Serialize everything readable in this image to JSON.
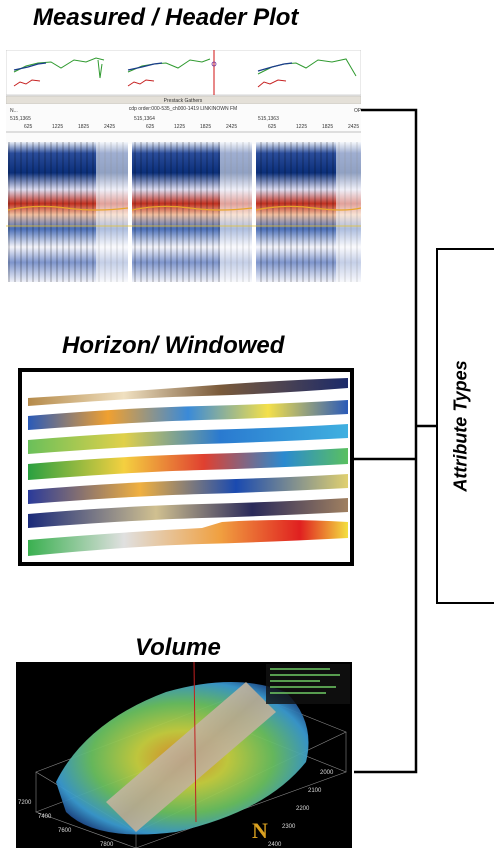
{
  "titles": {
    "measured": "Measured  / Header Plot",
    "horizon": "Horizon/ Windowed",
    "volume": "Volume"
  },
  "attribute_types_label": "Attribute Types",
  "measured_panel": {
    "gathers_header": "Prestack Gathers",
    "axis_caption": "cdp order:000-535_ch000-1419 LINKINOWN FM",
    "gather_labels": [
      "515,1365",
      "515,1364",
      "515,1363"
    ],
    "tick_labels": [
      "625",
      "1225",
      "1825",
      "2425"
    ],
    "corner_left": "N...",
    "corner_right": "OP"
  },
  "volume_panel": {
    "axis_labels_left": [
      "7200",
      "7400",
      "7600",
      "7800"
    ],
    "axis_labels_right": [
      "2000",
      "2100",
      "2200",
      "2300",
      "2400"
    ],
    "north_label": "N"
  },
  "colors": {
    "line": "#000000",
    "seismic_blue": "#0b2f7a",
    "seismic_red": "#b21e16",
    "horizon_yellow": "#e7c52a"
  }
}
